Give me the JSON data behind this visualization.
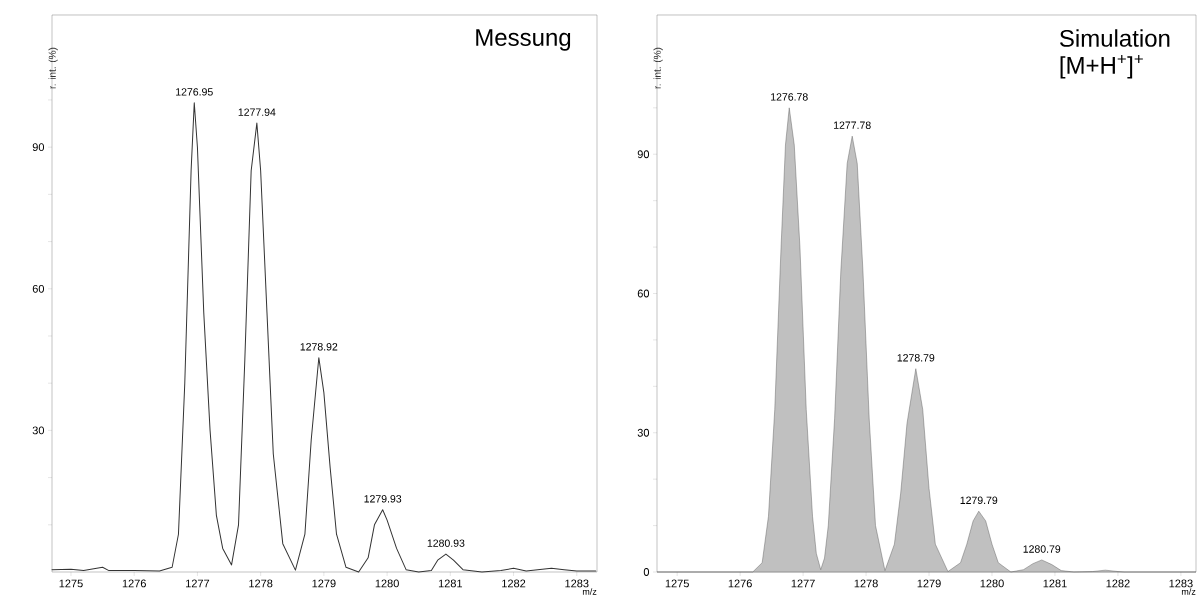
{
  "chart_data": [
    {
      "type": "line",
      "title": "Messung",
      "xlabel": "m/z",
      "ylabel": "r. int. (%)",
      "series": [
        {
          "color": "#333333",
          "x": [
            1274.7,
            1275.0,
            1275.2,
            1275.5,
            1275.6,
            1276.0,
            1276.4,
            1276.6,
            1276.7,
            1276.8,
            1276.9,
            1276.95,
            1277.0,
            1277.1,
            1277.2,
            1277.3,
            1277.4,
            1277.54,
            1277.65,
            1277.75,
            1277.85,
            1277.94,
            1278.0,
            1278.1,
            1278.2,
            1278.35,
            1278.55,
            1278.7,
            1278.8,
            1278.92,
            1279.0,
            1279.1,
            1279.2,
            1279.35,
            1279.55,
            1279.7,
            1279.8,
            1279.93,
            1280.0,
            1280.15,
            1280.3,
            1280.5,
            1280.7,
            1280.8,
            1280.93,
            1281.05,
            1281.2,
            1281.5,
            1281.8,
            1282.0,
            1282.2,
            1282.6,
            1282.8,
            1283.0,
            1283.3
          ],
          "values": [
            0.5,
            0.6,
            0.3,
            1.0,
            0.3,
            0.3,
            0.2,
            1.0,
            8,
            40,
            85,
            99.4,
            90,
            55,
            30,
            12,
            5,
            1.5,
            10,
            45,
            85,
            95.1,
            85,
            55,
            25,
            6,
            0.4,
            8,
            28,
            45.4,
            38,
            22,
            8,
            1,
            0,
            3,
            10,
            13.2,
            11,
            5,
            0.5,
            0,
            0.3,
            2.5,
            3.8,
            2.5,
            0.5,
            0,
            0.3,
            0.8,
            0.2,
            0.8,
            0.5,
            0.2,
            0.2
          ]
        }
      ],
      "xlim": [
        1274.7,
        1283.32
      ],
      "ylim": [
        0,
        118
      ],
      "xticks": [
        1275,
        1276,
        1277,
        1278,
        1279,
        1280,
        1281,
        1282,
        1283
      ],
      "yticks": [
        {
          "value": 10,
          "label": null
        },
        {
          "value": 20,
          "label": null
        },
        30,
        {
          "value": 40,
          "label": null
        },
        {
          "value": 50,
          "label": null
        },
        60,
        {
          "value": 70,
          "label": null
        },
        {
          "value": 80,
          "label": null
        },
        90,
        {
          "value": 100,
          "label": null
        },
        {
          "value": 110,
          "label": null
        }
      ],
      "annotations": [
        {
          "text": "1276.95",
          "x": 1276.95,
          "y": 99.4
        },
        {
          "text": "1277.94",
          "x": 1277.94,
          "y": 95.1
        },
        {
          "text": "1278.92",
          "x": 1278.92,
          "y": 45.4
        },
        {
          "text": "1279.93",
          "x": 1279.93,
          "y": 13.2
        },
        {
          "text": "1280.93",
          "x": 1280.93,
          "y": 3.8
        }
      ]
    },
    {
      "type": "area",
      "title": "Simulation",
      "subtitle": "[M+H$^{+}$]$^{+}$",
      "xlabel": "m/z",
      "ylabel": "r. int. (%)",
      "series": [
        {
          "color": "#c0c0c0",
          "x": [
            1274.68,
            1276.2,
            1276.35,
            1276.45,
            1276.55,
            1276.65,
            1276.72,
            1276.78,
            1276.86,
            1276.95,
            1277.05,
            1277.15,
            1277.21,
            1277.28,
            1277.34,
            1277.4,
            1277.5,
            1277.6,
            1277.7,
            1277.78,
            1277.86,
            1277.95,
            1278.05,
            1278.15,
            1278.3,
            1278.45,
            1278.55,
            1278.65,
            1278.79,
            1278.9,
            1279.0,
            1279.1,
            1279.3,
            1279.5,
            1279.6,
            1279.7,
            1279.79,
            1279.9,
            1280.0,
            1280.1,
            1280.3,
            1280.5,
            1280.65,
            1280.79,
            1280.95,
            1281.1,
            1281.3,
            1281.6,
            1281.8,
            1282.0,
            1282.1,
            1283.24
          ],
          "values": [
            0,
            0,
            2,
            12,
            35,
            70,
            92,
            100,
            92,
            70,
            35,
            12,
            4,
            0.5,
            3,
            10,
            33,
            65,
            88,
            93.9,
            88,
            65,
            33,
            10,
            0.3,
            6,
            17,
            32,
            43.8,
            35,
            18,
            6,
            0.1,
            2,
            6,
            11,
            13.1,
            11,
            6,
            2,
            0,
            0.5,
            1.8,
            2.6,
            1.6,
            0.3,
            0,
            0.1,
            0.4,
            0.1,
            0,
            0
          ]
        }
      ],
      "xlim": [
        1274.68,
        1283.24
      ],
      "ylim": [
        0,
        120
      ],
      "xticks": [
        1275,
        1276,
        1277,
        1278,
        1279,
        1280,
        1281,
        1282,
        1283
      ],
      "yticks": [
        0,
        {
          "value": 10,
          "label": null
        },
        {
          "value": 20,
          "label": null
        },
        30,
        {
          "value": 40,
          "label": null
        },
        {
          "value": 50,
          "label": null
        },
        60,
        {
          "value": 70,
          "label": null
        },
        {
          "value": 80,
          "label": null
        },
        90,
        {
          "value": 100,
          "label": null
        },
        {
          "value": 110,
          "label": null
        }
      ],
      "annotations": [
        {
          "text": "1276.78",
          "x": 1276.78,
          "y": 100
        },
        {
          "text": "1277.78",
          "x": 1277.78,
          "y": 93.9
        },
        {
          "text": "1278.79",
          "x": 1278.79,
          "y": 43.8
        },
        {
          "text": "1279.79",
          "x": 1279.79,
          "y": 13.1
        },
        {
          "text": "1280.79",
          "x": 1280.79,
          "y": 2.6
        }
      ]
    }
  ]
}
